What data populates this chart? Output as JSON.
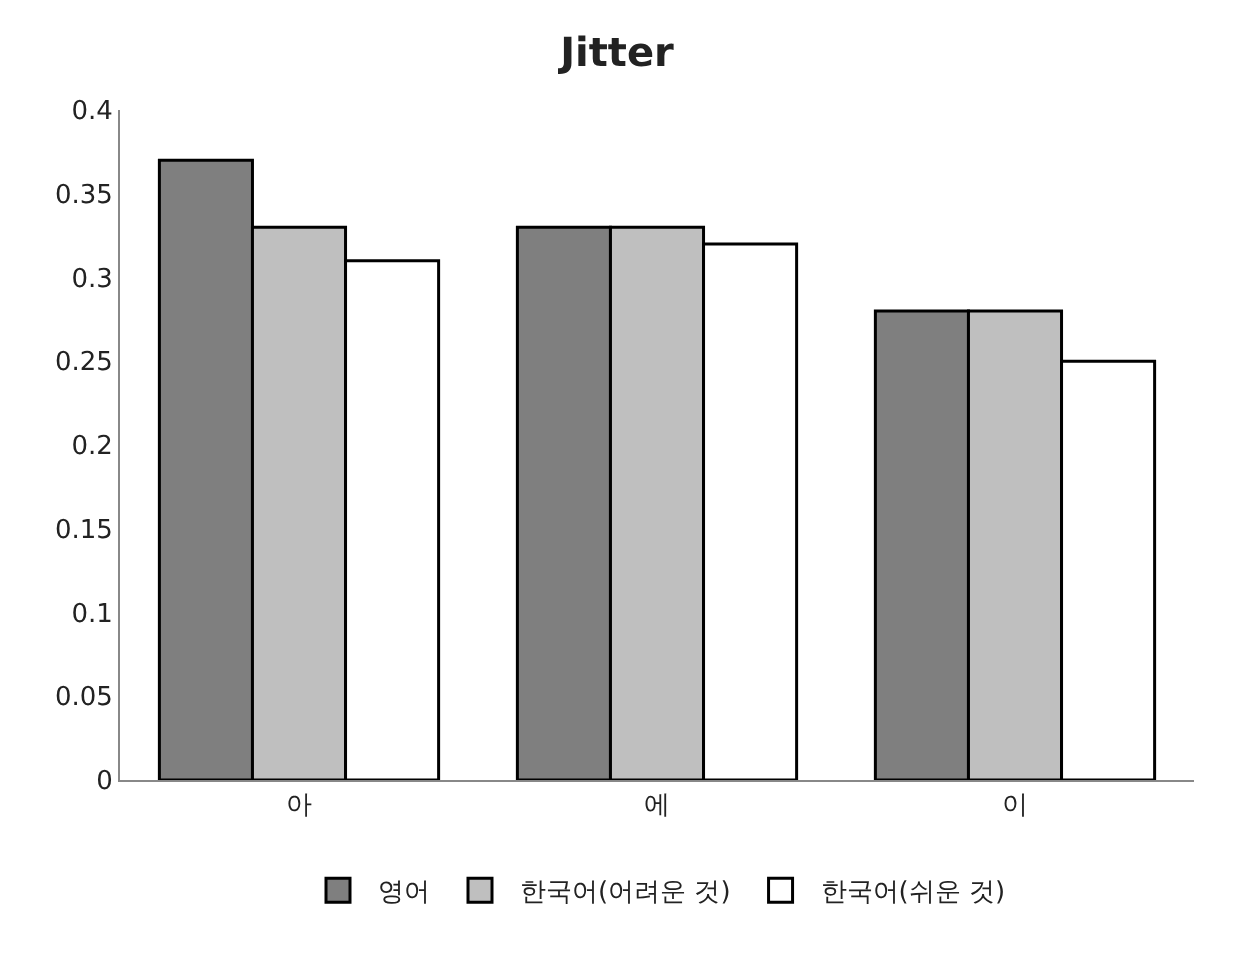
{
  "chart_data": {
    "type": "bar",
    "title": "Jitter",
    "categories": [
      "아",
      "에",
      "이"
    ],
    "series": [
      {
        "name": "영어",
        "color": "#7f7f7f",
        "values": [
          0.37,
          0.33,
          0.28
        ]
      },
      {
        "name": "한국어(어려운 것)",
        "color": "#bfbfbf",
        "values": [
          0.33,
          0.33,
          0.28
        ]
      },
      {
        "name": "한국어(쉬운 것)",
        "color": "#ffffff",
        "values": [
          0.31,
          0.32,
          0.25
        ]
      }
    ],
    "ylim": [
      0,
      0.4
    ],
    "yticks": [
      {
        "value": 0,
        "label": "0"
      },
      0.05,
      0.1,
      0.15,
      0.2,
      0.25,
      0.3,
      0.35,
      0.4
    ],
    "legend": "bottom"
  }
}
